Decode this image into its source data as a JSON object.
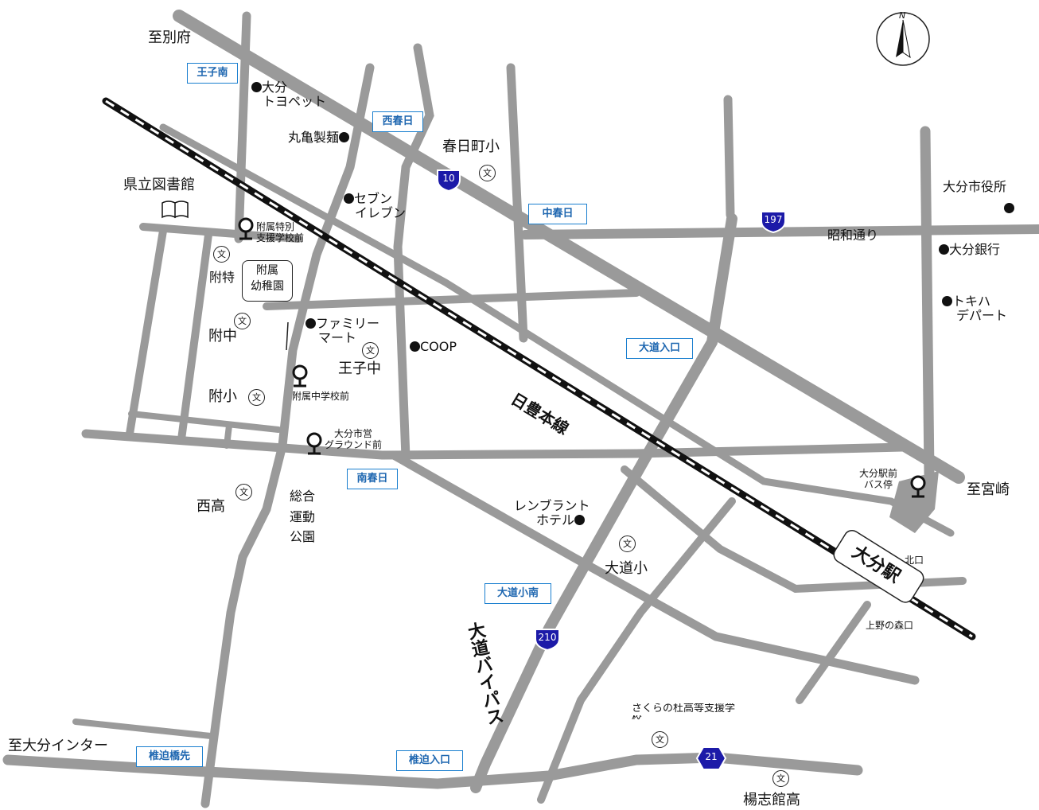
{
  "directions": {
    "beppu": "至別府",
    "miyazaki": "至宮崎",
    "oita_ic": "至大分インター"
  },
  "intersections": {
    "ojiminami": "王子南",
    "nishikasuga": "西春日",
    "nakakasuga": "中春日",
    "oomichi_iriguchi": "大道入口",
    "minamikasuga": "南春日",
    "oomichi_shou_minami": "大道小南",
    "shiisako_hashisaki": "椎迫橋先",
    "shiisako_iriguchi": "椎迫入口"
  },
  "landmarks": {
    "toyopet_1": "大分",
    "toyopet_2": "トヨペット",
    "marukame": "丸亀製麺",
    "seven_1": "セブン",
    "seven_2": "イレブン",
    "library": "県立図書館",
    "family_1": "ファミリー",
    "family_2": "マート",
    "coop": "COOP",
    "rembrandt_1": "レンブラント",
    "rembrandt_2": "ホテル",
    "cityhall": "大分市役所",
    "oita_bank": "大分銀行",
    "tokiha_1": "トキハ",
    "tokiha_2": "デパート",
    "showa_dori": "昭和通り",
    "sogo_1": "総合",
    "sogo_2": "運動",
    "sogo_3": "公園",
    "sakura_1": "さくらの杜高等支援学",
    "sakura_2": "校"
  },
  "schools": {
    "kasugamachi": "春日町小",
    "fuzokutoku": "附特",
    "fuzokuyochien_1": "附属",
    "fuzokuyochien_2": "幼稚園",
    "fuchu": "附中",
    "ojichu": "王子中",
    "fusho": "附小",
    "nishikou": "西高",
    "oomichisho": "大道小",
    "youshikan": "楊志館高"
  },
  "school_mark": "文",
  "bus_stops": {
    "fuzokutoku_1": "附属特別",
    "fuzokutoku_2": "支援学校前",
    "fuzokuchu": "附属中学校前",
    "ground_1": "大分市営",
    "ground_2": "グラウンド前",
    "station_1": "大分駅前",
    "station_2": "バス停"
  },
  "station": {
    "name": "大分駅",
    "north": "北口",
    "south": "上野の森口"
  },
  "railway": {
    "name": "日豊本線"
  },
  "bypass": {
    "name": "大道バイパス"
  },
  "routes": {
    "r10": "10",
    "r197": "197",
    "r210": "210",
    "r21": "21"
  },
  "compass": {
    "n": "N"
  },
  "colors": {
    "road": "#9a9a9a",
    "shield": "#1c1aa8",
    "label_blue": "#1d66b0",
    "rail": "#111111"
  },
  "icons": {
    "school": "school-icon",
    "bus": "bus-stop-icon",
    "library": "book-icon",
    "compass": "compass-icon"
  }
}
